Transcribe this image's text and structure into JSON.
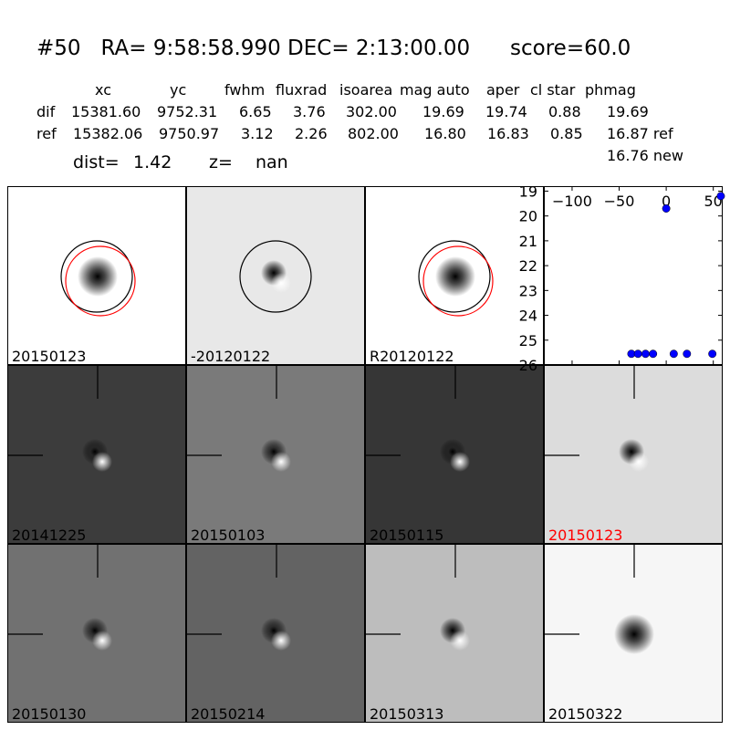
{
  "header": {
    "title": "#50   RA= 9:58:58.990 DEC= 2:13:00.00      score=60.0",
    "columns": [
      "xc",
      "yc",
      "fwhm",
      "fluxrad",
      "isoarea",
      "mag auto",
      "aper",
      "cl star",
      "phmag"
    ],
    "rows": [
      {
        "name": "dif",
        "values": [
          "15381.60",
          "9752.31",
          "6.65",
          "3.76",
          "302.00",
          "19.69",
          "19.74",
          "0.88",
          "19.69"
        ]
      },
      {
        "name": "ref",
        "values": [
          "15382.06",
          "9750.97",
          "3.12",
          "2.26",
          "802.00",
          "16.80",
          "16.83",
          "0.85",
          "16.87 ref"
        ]
      }
    ],
    "extra_phmag": "16.76 new",
    "dist_label": "dist=",
    "dist_value": "1.42",
    "z_label": "z=",
    "z_value": "nan"
  },
  "stamps": [
    {
      "label": "20150123",
      "bg": "#ffffff",
      "kind": "blob",
      "circles": true,
      "red_circle": true,
      "cross": false,
      "label_color": "#000000"
    },
    {
      "label": "-20120122",
      "bg": "#e8e8e8",
      "kind": "dipole",
      "circles": true,
      "red_circle": false,
      "cross": false,
      "label_color": "#000000"
    },
    {
      "label": "R20120122",
      "bg": "#ffffff",
      "kind": "blob",
      "circles": true,
      "red_circle": true,
      "cross": false,
      "label_color": "#000000"
    },
    {
      "label": "20141225",
      "bg": "#3c3c3c",
      "kind": "dipole",
      "circles": false,
      "red_circle": false,
      "cross": true,
      "label_color": "#000000"
    },
    {
      "label": "20150103",
      "bg": "#7a7a7a",
      "kind": "dipole",
      "circles": false,
      "red_circle": false,
      "cross": true,
      "label_color": "#000000"
    },
    {
      "label": "20150115",
      "bg": "#363636",
      "kind": "dipole",
      "circles": false,
      "red_circle": false,
      "cross": true,
      "label_color": "#000000"
    },
    {
      "label": "20150123",
      "bg": "#dcdcdc",
      "kind": "dipole",
      "circles": false,
      "red_circle": false,
      "cross": true,
      "label_color": "#ff0000"
    },
    {
      "label": "20150130",
      "bg": "#717171",
      "kind": "dipole",
      "circles": false,
      "red_circle": false,
      "cross": true,
      "label_color": "#000000"
    },
    {
      "label": "20150214",
      "bg": "#636363",
      "kind": "dipole",
      "circles": false,
      "red_circle": false,
      "cross": true,
      "label_color": "#000000"
    },
    {
      "label": "20150313",
      "bg": "#bdbdbd",
      "kind": "dipole",
      "circles": false,
      "red_circle": false,
      "cross": true,
      "label_color": "#000000"
    },
    {
      "label": "20150322",
      "bg": "#f6f6f6",
      "kind": "blob",
      "circles": false,
      "red_circle": false,
      "cross": true,
      "label_color": "#000000"
    }
  ],
  "chart_data": {
    "type": "scatter",
    "xlim": [
      -130,
      60
    ],
    "ylim": [
      26,
      18.8
    ],
    "y_inverted": true,
    "xticks": [
      -100,
      -50,
      0,
      50
    ],
    "yticks": [
      19,
      20,
      21,
      22,
      23,
      24,
      25,
      26
    ],
    "x": [
      -37,
      -30,
      -22,
      -14,
      0,
      8,
      22,
      49,
      58
    ],
    "y": [
      25.55,
      25.55,
      25.55,
      25.55,
      19.7,
      25.55,
      25.55,
      25.55,
      19.2
    ],
    "marker_color": "#0000ff",
    "grid": false
  }
}
